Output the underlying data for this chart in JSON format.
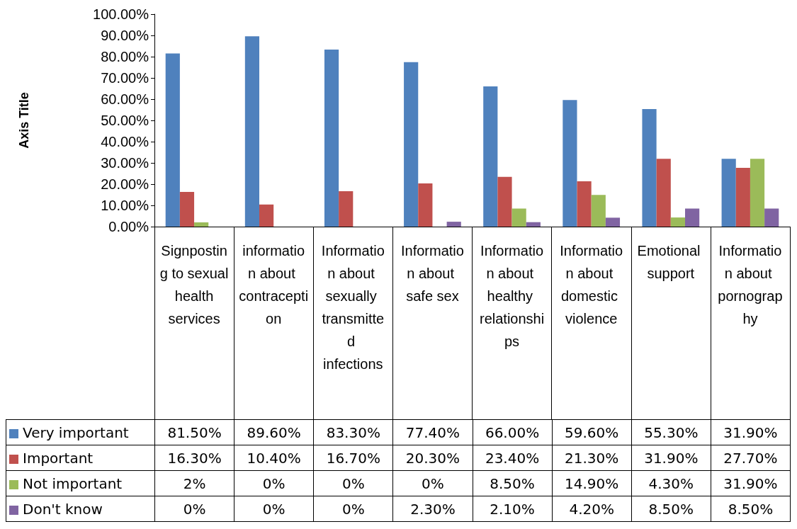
{
  "chart_data": {
    "type": "bar",
    "ylabel": "Axis Title",
    "categories": [
      "Signposting to sexual health services",
      "information about contraception",
      "Information about sexually transmitted infections",
      "Information about safe sex",
      "Information about healthy relationships",
      "Information about domestic violence",
      "Emotional support",
      "Information about pornography"
    ],
    "series": [
      {
        "name": "Very important",
        "color": "#4f81bd",
        "values": [
          81.5,
          89.6,
          83.3,
          77.4,
          66.0,
          59.6,
          55.3,
          31.9
        ],
        "value_labels": [
          "81.50%",
          "89.60%",
          "83.30%",
          "77.40%",
          "66.00%",
          "59.60%",
          "55.30%",
          "31.90%"
        ]
      },
      {
        "name": "Important",
        "color": "#c0504d",
        "values": [
          16.3,
          10.4,
          16.7,
          20.3,
          23.4,
          21.3,
          31.9,
          27.7
        ],
        "value_labels": [
          "16.30%",
          "10.40%",
          "16.70%",
          "20.30%",
          "23.40%",
          "21.30%",
          "31.90%",
          "27.70%"
        ]
      },
      {
        "name": "Not important",
        "color": "#9bbb59",
        "values": [
          2,
          0,
          0,
          0,
          8.5,
          14.9,
          4.3,
          31.9
        ],
        "value_labels": [
          "2%",
          "0%",
          "0%",
          "0%",
          "8.50%",
          "14.90%",
          "4.30%",
          "31.90%"
        ]
      },
      {
        "name": "Don't know",
        "color": "#8064a2",
        "values": [
          0,
          0,
          0,
          2.3,
          2.1,
          4.2,
          8.5,
          8.5
        ],
        "value_labels": [
          "0%",
          "0%",
          "0%",
          "2.30%",
          "2.10%",
          "4.20%",
          "8.50%",
          "8.50%"
        ]
      }
    ],
    "ylim": [
      0,
      100
    ],
    "yticks": [
      {
        "value": 0,
        "label": "0.00%"
      },
      {
        "value": 10,
        "label": "10.00%"
      },
      {
        "value": 20,
        "label": "20.00%"
      },
      {
        "value": 30,
        "label": "30.00%"
      },
      {
        "value": 40,
        "label": "40.00%"
      },
      {
        "value": 50,
        "label": "50.00%"
      },
      {
        "value": 60,
        "label": "60.00%"
      },
      {
        "value": 70,
        "label": "70.00%"
      },
      {
        "value": 80,
        "label": "80.00%"
      },
      {
        "value": 90,
        "label": "90.00%"
      },
      {
        "value": 100,
        "label": "100.00%"
      }
    ],
    "grid": false,
    "legend": "bottom left"
  }
}
